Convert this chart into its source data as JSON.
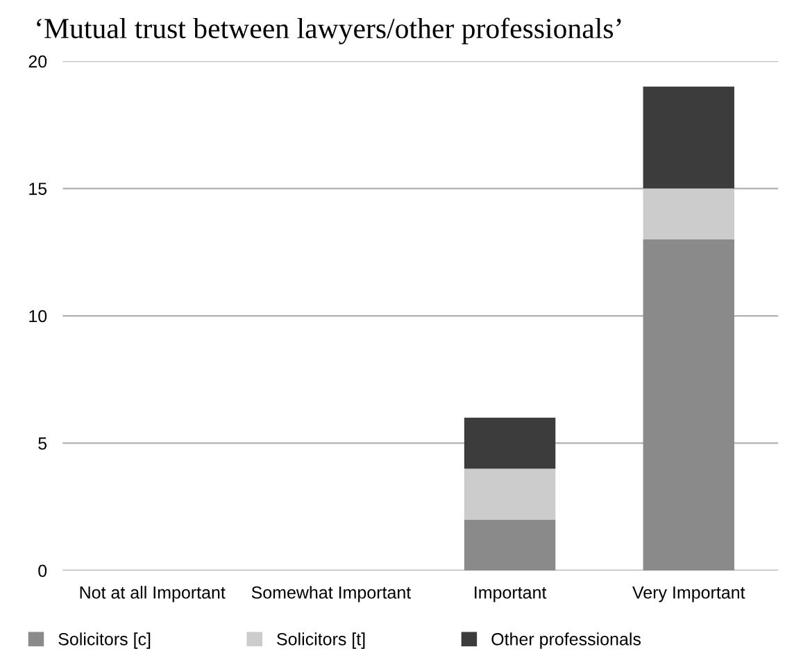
{
  "chart_data": {
    "type": "bar",
    "title": "‘Mutual trust between lawyers/other professionals’",
    "stacked": true,
    "categories": [
      "Not at all Important",
      "Somewhat Important",
      "Important",
      "Very Important"
    ],
    "series": [
      {
        "name": "Solicitors [c]",
        "color": "#8a8a8a",
        "values": [
          0,
          0,
          2,
          13
        ]
      },
      {
        "name": "Solicitors [t]",
        "color": "#cccccc",
        "values": [
          0,
          0,
          2,
          2
        ]
      },
      {
        "name": "Other professionals",
        "color": "#3c3c3c",
        "values": [
          0,
          0,
          2,
          4
        ]
      }
    ],
    "ylim": [
      0,
      20
    ],
    "yticks": [
      0,
      5,
      10,
      15,
      20
    ],
    "grid": "y",
    "legend": "bottom"
  }
}
